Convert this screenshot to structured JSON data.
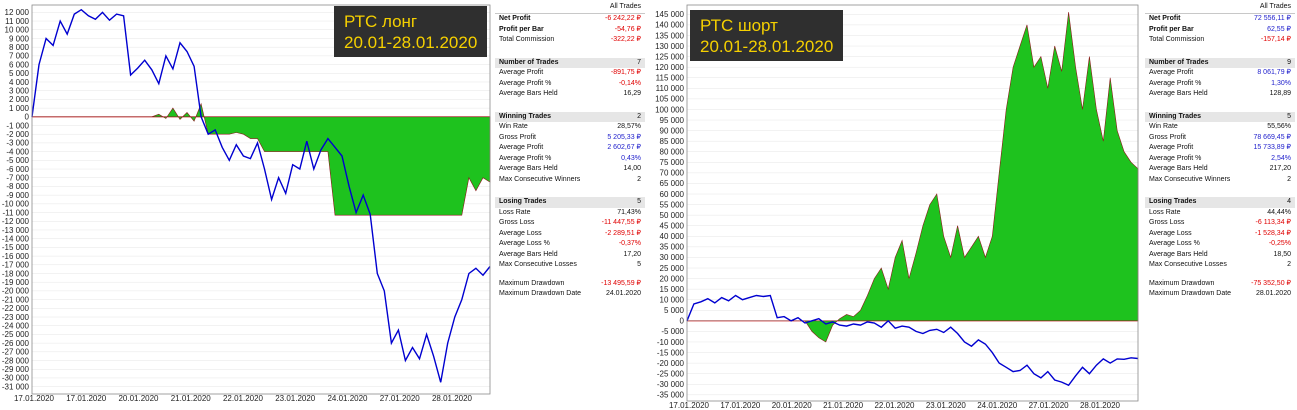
{
  "colors": {
    "equity_line": "#0000d0",
    "profit_fill": "#1ec21e",
    "profit_edge": "#8b1a1a",
    "zero_line": "#e00000",
    "grid": "#e6e6e6",
    "title_bg": "#2f2f2f",
    "title_fg": "#f5d000"
  },
  "left_title": [
    "РТС лонг",
    "20.01-28.01.2020"
  ],
  "right_title": [
    "РТС шорт",
    "20.01-28.01.2020"
  ],
  "chart_data": [
    {
      "type": "line",
      "title": "РТС лонг 20.01-28.01.2020",
      "x_tick_labels": [
        "17.01.2020",
        "17.01.2020",
        "20.01.2020",
        "21.01.2020",
        "22.01.2020",
        "23.01.2020",
        "24.01.2020",
        "27.01.2020",
        "28.01.2020"
      ],
      "y_tick_labels": [
        "12 000",
        "11 000",
        "10 000",
        "9 000",
        "8 000",
        "7 000",
        "6 000",
        "5 000",
        "4 000",
        "3 000",
        "2 000",
        "1 000",
        "0",
        "-1 000",
        "-2 000",
        "-3 000",
        "-4 000",
        "-5 000",
        "-6 000",
        "-7 000",
        "-8 000",
        "-9 000",
        "-10 000",
        "-11 000",
        "-12 000",
        "-13 000",
        "-14 000",
        "-15 000",
        "-16 000",
        "-17 000",
        "-18 000",
        "-19 000",
        "-20 000",
        "-21 000",
        "-22 000",
        "-23 000",
        "-24 000",
        "-25 000",
        "-26 000",
        "-27 000",
        "-28 000",
        "-29 000",
        "-30 000",
        "-31 000"
      ],
      "ylim": [
        -31500,
        12500
      ],
      "series": [
        {
          "kind": "equity_line",
          "x": [
            0,
            1,
            2,
            3,
            4,
            5,
            6,
            7,
            8,
            9,
            10,
            11,
            12,
            13,
            14,
            15,
            16,
            17,
            18,
            19,
            20,
            21,
            22,
            23,
            24,
            25,
            26,
            27,
            28,
            29,
            30,
            31,
            32,
            33,
            34,
            35,
            36,
            37,
            38,
            39,
            40,
            41,
            42,
            43,
            44,
            45,
            46,
            47,
            48,
            49,
            50,
            51,
            52,
            53,
            54,
            55,
            56,
            57,
            58,
            59,
            60,
            61,
            62,
            63,
            64,
            65
          ],
          "y": [
            0,
            6000,
            9000,
            8200,
            11000,
            9500,
            11800,
            12300,
            11600,
            11200,
            12000,
            11100,
            11800,
            11600,
            4800,
            5600,
            6500,
            5400,
            3800,
            7000,
            5500,
            8500,
            7500,
            5800,
            0,
            -2000,
            -1500,
            -3500,
            -5000,
            -3200,
            -4500,
            -4800,
            -3000,
            -6000,
            -9500,
            -7000,
            -8800,
            -5500,
            -6000,
            -2800,
            -6000,
            -3800,
            -2500,
            -3500,
            -4500,
            -8000,
            -11000,
            -9000,
            -11200,
            -18000,
            -20000,
            -26000,
            -24500,
            -28000,
            -26500,
            -27800,
            -25000,
            -27500,
            -30500,
            -26000,
            -23000,
            -21000,
            -18000,
            -17400,
            -18200,
            -17200
          ]
        },
        {
          "kind": "profit_area",
          "x": [
            0,
            17,
            18,
            19,
            20,
            21,
            22,
            23,
            24,
            25,
            26,
            27,
            28,
            29,
            30,
            31,
            32,
            33,
            34,
            35,
            36,
            37,
            38,
            39,
            40,
            41,
            42,
            43,
            44,
            45,
            46,
            47,
            48,
            49,
            50,
            51,
            52,
            53,
            54,
            55,
            56,
            57,
            58,
            59,
            60,
            61,
            62,
            63,
            64,
            65
          ],
          "y": [
            0,
            0,
            300,
            -200,
            1000,
            -300,
            500,
            -500,
            1500,
            -2000,
            -2000,
            -2000,
            -2000,
            -1800,
            -2000,
            -2500,
            -2500,
            -4000,
            -4000,
            -4000,
            -4000,
            -4000,
            -4000,
            -4000,
            -4000,
            -4000,
            -4000,
            -11300,
            -11300,
            -11300,
            -11300,
            -11300,
            -11300,
            -11300,
            -11300,
            -11300,
            -11300,
            -11300,
            -11300,
            -11300,
            -11300,
            -11300,
            -11300,
            -11300,
            -11300,
            -11300,
            -7000,
            -8500,
            -7000,
            -7500
          ]
        }
      ]
    },
    {
      "type": "line",
      "title": "РТС шорт 20.01-28.01.2020",
      "x_tick_labels": [
        "17.01.2020",
        "17.01.2020",
        "20.01.2020",
        "21.01.2020",
        "22.01.2020",
        "23.01.2020",
        "24.01.2020",
        "27.01.2020",
        "28.01.2020"
      ],
      "y_tick_labels": [
        "145 000",
        "140 000",
        "135 000",
        "130 000",
        "125 000",
        "120 000",
        "115 000",
        "110 000",
        "105 000",
        "100 000",
        "95 000",
        "90 000",
        "85 000",
        "80 000",
        "75 000",
        "70 000",
        "65 000",
        "60 000",
        "55 000",
        "50 000",
        "45 000",
        "40 000",
        "35 000",
        "30 000",
        "25 000",
        "20 000",
        "15 000",
        "10 000",
        "5 000",
        "0",
        "-5 000",
        "-10 000",
        "-15 000",
        "-20 000",
        "-25 000",
        "-30 000",
        "-35 000"
      ],
      "ylim": [
        -36500,
        148000
      ],
      "series": [
        {
          "kind": "equity_line",
          "x": [
            0,
            1,
            2,
            3,
            4,
            5,
            6,
            7,
            8,
            9,
            10,
            11,
            12,
            13,
            14,
            15,
            16,
            17,
            18,
            19,
            20,
            21,
            22,
            23,
            24,
            25,
            26,
            27,
            28,
            29,
            30,
            31,
            32,
            33,
            34,
            35,
            36,
            37,
            38,
            39,
            40,
            41,
            42,
            43,
            44,
            45,
            46,
            47,
            48,
            49,
            50,
            51,
            52,
            53,
            54,
            55,
            56,
            57,
            58,
            59,
            60,
            61,
            62,
            63,
            64,
            65
          ],
          "y": [
            0,
            8000,
            9000,
            10500,
            8500,
            11000,
            9500,
            12000,
            10000,
            11000,
            12000,
            11500,
            12000,
            1500,
            2000,
            0,
            1500,
            -1000,
            0,
            1000,
            -1500,
            -500,
            -2000,
            -2500,
            -1500,
            -2000,
            -500,
            -1000,
            -3000,
            0,
            -3500,
            -2500,
            -3000,
            -5000,
            -6000,
            -4500,
            -4000,
            -5500,
            -3000,
            -6000,
            -10000,
            -12000,
            -9000,
            -11000,
            -15000,
            -20000,
            -22000,
            -24000,
            -23500,
            -21000,
            -25000,
            -27000,
            -24000,
            -28000,
            -29000,
            -30500,
            -26000,
            -22000,
            -25000,
            -21000,
            -18000,
            -20000,
            -18000,
            -18200,
            -17500,
            -17800
          ]
        },
        {
          "kind": "profit_area",
          "x": [
            0,
            17,
            18,
            19,
            20,
            21,
            22,
            23,
            24,
            25,
            26,
            27,
            28,
            29,
            30,
            31,
            32,
            33,
            34,
            35,
            36,
            37,
            38,
            39,
            40,
            41,
            42,
            43,
            44,
            45,
            46,
            47,
            48,
            49,
            50,
            51,
            52,
            53,
            54,
            55,
            56,
            57,
            58,
            59,
            60,
            61,
            62,
            63,
            64,
            65
          ],
          "y": [
            0,
            0,
            -5000,
            -8000,
            -10000,
            -2000,
            1000,
            3000,
            2000,
            5000,
            12000,
            20000,
            25000,
            15000,
            30000,
            38000,
            20000,
            32000,
            45000,
            55000,
            60000,
            40000,
            30000,
            45000,
            30000,
            35000,
            40000,
            30000,
            40000,
            70000,
            100000,
            120000,
            130000,
            140000,
            120000,
            125000,
            110000,
            130000,
            118000,
            146000,
            120000,
            100000,
            125000,
            100000,
            85000,
            115000,
            90000,
            80000,
            75000,
            72000
          ]
        }
      ]
    }
  ],
  "left_stats": {
    "header": "All Trades",
    "rows": [
      {
        "label": "Net Profit",
        "value": "-6 242,22 ₽",
        "tone": "neg",
        "style": "bold"
      },
      {
        "label": "Profit per Bar",
        "value": "-54,76 ₽",
        "tone": "neg",
        "style": "bold"
      },
      {
        "label": "Total Commission",
        "value": "-322,22 ₽",
        "tone": "neg",
        "style": ""
      },
      {
        "label": "",
        "value": "",
        "tone": "neu",
        "style": "spacer"
      },
      {
        "label": "Number of Trades",
        "value": "7",
        "tone": "neu",
        "style": "section"
      },
      {
        "label": "Average Profit",
        "value": "-891,75 ₽",
        "tone": "neg",
        "style": ""
      },
      {
        "label": "Average Profit %",
        "value": "-0,14%",
        "tone": "neg",
        "style": ""
      },
      {
        "label": "Average Bars Held",
        "value": "16,29",
        "tone": "neu",
        "style": ""
      },
      {
        "label": "",
        "value": "",
        "tone": "neu",
        "style": "spacer"
      },
      {
        "label": "Winning Trades",
        "value": "2",
        "tone": "neu",
        "style": "section"
      },
      {
        "label": "Win Rate",
        "value": "28,57%",
        "tone": "neu",
        "style": ""
      },
      {
        "label": "Gross Profit",
        "value": "5 205,33 ₽",
        "tone": "pos",
        "style": ""
      },
      {
        "label": "Average Profit",
        "value": "2 602,67 ₽",
        "tone": "pos",
        "style": ""
      },
      {
        "label": "Average Profit %",
        "value": "0,43%",
        "tone": "pos",
        "style": ""
      },
      {
        "label": "Average Bars Held",
        "value": "14,00",
        "tone": "neu",
        "style": ""
      },
      {
        "label": "Max Consecutive Winners",
        "value": "2",
        "tone": "neu",
        "style": ""
      },
      {
        "label": "",
        "value": "",
        "tone": "neu",
        "style": "spacer"
      },
      {
        "label": "Losing Trades",
        "value": "5",
        "tone": "neu",
        "style": "section"
      },
      {
        "label": "Loss Rate",
        "value": "71,43%",
        "tone": "neu",
        "style": ""
      },
      {
        "label": "Gross Loss",
        "value": "-11 447,55 ₽",
        "tone": "neg",
        "style": ""
      },
      {
        "label": "Average Loss",
        "value": "-2 289,51 ₽",
        "tone": "neg",
        "style": ""
      },
      {
        "label": "Average Loss %",
        "value": "-0,37%",
        "tone": "neg",
        "style": ""
      },
      {
        "label": "Average Bars Held",
        "value": "17,20",
        "tone": "neu",
        "style": ""
      },
      {
        "label": "Max Consecutive Losses",
        "value": "5",
        "tone": "neu",
        "style": ""
      },
      {
        "label": "",
        "value": "",
        "tone": "neu",
        "style": "spacer"
      },
      {
        "label": "Maximum Drawdown",
        "value": "-13 495,59 ₽",
        "tone": "neg",
        "style": ""
      },
      {
        "label": "Maximum Drawdown Date",
        "value": "24.01.2020",
        "tone": "neu",
        "style": ""
      }
    ]
  },
  "right_stats": {
    "header": "All Trades",
    "rows": [
      {
        "label": "Net Profit",
        "value": "72 556,11 ₽",
        "tone": "pos",
        "style": "bold"
      },
      {
        "label": "Profit per Bar",
        "value": "62,55 ₽",
        "tone": "pos",
        "style": "bold"
      },
      {
        "label": "Total Commission",
        "value": "-157,14 ₽",
        "tone": "neg",
        "style": ""
      },
      {
        "label": "",
        "value": "",
        "tone": "neu",
        "style": "spacer"
      },
      {
        "label": "Number of Trades",
        "value": "9",
        "tone": "neu",
        "style": "section"
      },
      {
        "label": "Average Profit",
        "value": "8 061,79 ₽",
        "tone": "pos",
        "style": ""
      },
      {
        "label": "Average Profit %",
        "value": "1,30%",
        "tone": "pos",
        "style": ""
      },
      {
        "label": "Average Bars Held",
        "value": "128,89",
        "tone": "neu",
        "style": ""
      },
      {
        "label": "",
        "value": "",
        "tone": "neu",
        "style": "spacer"
      },
      {
        "label": "Winning Trades",
        "value": "5",
        "tone": "neu",
        "style": "section"
      },
      {
        "label": "Win Rate",
        "value": "55,56%",
        "tone": "neu",
        "style": ""
      },
      {
        "label": "Gross Profit",
        "value": "78 669,45 ₽",
        "tone": "pos",
        "style": ""
      },
      {
        "label": "Average Profit",
        "value": "15 733,89 ₽",
        "tone": "pos",
        "style": ""
      },
      {
        "label": "Average Profit %",
        "value": "2,54%",
        "tone": "pos",
        "style": ""
      },
      {
        "label": "Average Bars Held",
        "value": "217,20",
        "tone": "neu",
        "style": ""
      },
      {
        "label": "Max Consecutive Winners",
        "value": "2",
        "tone": "neu",
        "style": ""
      },
      {
        "label": "",
        "value": "",
        "tone": "neu",
        "style": "spacer"
      },
      {
        "label": "Losing Trades",
        "value": "4",
        "tone": "neu",
        "style": "section"
      },
      {
        "label": "Loss Rate",
        "value": "44,44%",
        "tone": "neu",
        "style": ""
      },
      {
        "label": "Gross Loss",
        "value": "-6 113,34 ₽",
        "tone": "neg",
        "style": ""
      },
      {
        "label": "Average Loss",
        "value": "-1 528,34 ₽",
        "tone": "neg",
        "style": ""
      },
      {
        "label": "Average Loss %",
        "value": "-0,25%",
        "tone": "neg",
        "style": ""
      },
      {
        "label": "Average Bars Held",
        "value": "18,50",
        "tone": "neu",
        "style": ""
      },
      {
        "label": "Max Consecutive Losses",
        "value": "2",
        "tone": "neu",
        "style": ""
      },
      {
        "label": "",
        "value": "",
        "tone": "neu",
        "style": "spacer"
      },
      {
        "label": "Maximum Drawdown",
        "value": "-75 352,50 ₽",
        "tone": "neg",
        "style": ""
      },
      {
        "label": "Maximum Drawdown Date",
        "value": "28.01.2020",
        "tone": "neu",
        "style": ""
      }
    ]
  }
}
